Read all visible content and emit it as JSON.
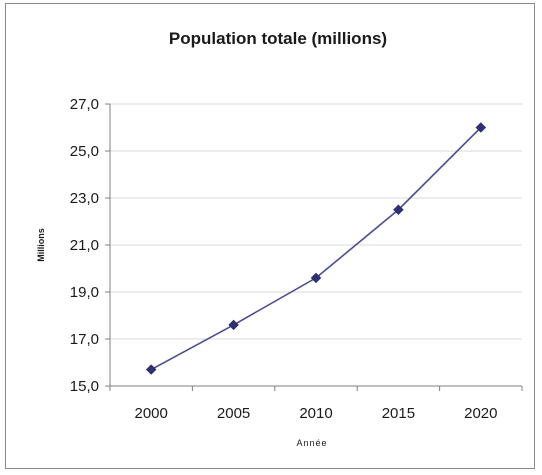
{
  "chart_data": {
    "type": "line",
    "title": "Population totale (millions)",
    "xlabel": "Année",
    "ylabel": "Millions",
    "x": [
      "2000",
      "2005",
      "2010",
      "2015",
      "2020"
    ],
    "series": [
      {
        "values": [
          15.7,
          17.6,
          19.6,
          22.5,
          26.0
        ]
      }
    ],
    "ylim": [
      15.0,
      27.0
    ],
    "yticks": [
      "15,0",
      "17,0",
      "19,0",
      "21,0",
      "23,0",
      "25,0",
      "27,0"
    ],
    "grid": true,
    "legend": "none",
    "colors": {
      "line": "#4a4d8e",
      "marker": "#2e3070",
      "grid": "#d9d9d9",
      "axis": "#808080"
    }
  }
}
